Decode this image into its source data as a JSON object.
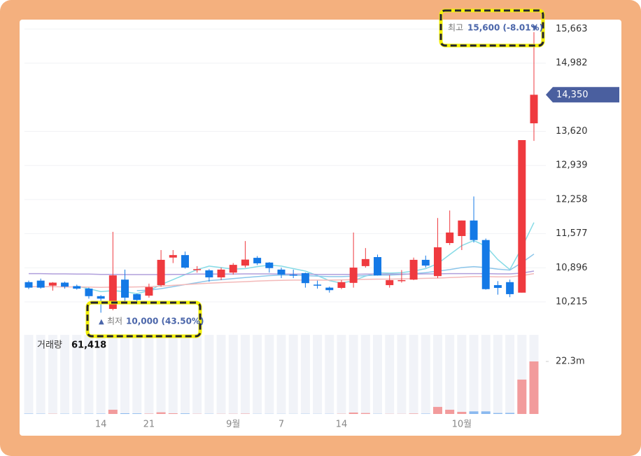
{
  "chart_data": {
    "type": "candlestick",
    "categories": [
      null,
      null,
      null,
      null,
      null,
      null,
      "14",
      null,
      null,
      null,
      "21",
      null,
      null,
      null,
      null,
      null,
      null,
      "9월",
      null,
      null,
      null,
      "7",
      null,
      null,
      null,
      null,
      "14",
      null,
      null,
      null,
      null,
      null,
      null,
      null,
      null,
      null,
      "10월",
      null,
      null,
      null,
      null,
      null,
      null
    ],
    "open": [
      10610,
      10640,
      10540,
      10600,
      10530,
      10480,
      10330,
      10075,
      10660,
      10370,
      10340,
      10550,
      11100,
      11150,
      10860,
      10845,
      10705,
      10800,
      10940,
      11095,
      11000,
      10860,
      10760,
      10790,
      10560,
      10500,
      10495,
      10595,
      10930,
      11110,
      10550,
      10640,
      10660,
      11055,
      10730,
      11390,
      11530,
      11840,
      11450,
      10550,
      10610,
      10400,
      13780
    ],
    "high": [
      10640,
      10680,
      10610,
      10620,
      10560,
      10500,
      10350,
      11614,
      10860,
      10380,
      10580,
      11250,
      11250,
      11220,
      10930,
      10870,
      10900,
      10990,
      11430,
      11130,
      11010,
      10900,
      10860,
      10800,
      10640,
      10520,
      10650,
      11600,
      11290,
      11160,
      10750,
      10850,
      11100,
      11140,
      11890,
      12040,
      11840,
      12320,
      11480,
      10630,
      10660,
      13445,
      15600
    ],
    "low": [
      10470,
      10480,
      10440,
      10480,
      10460,
      10280,
      10000,
      10047,
      10230,
      10215,
      10300,
      10520,
      10990,
      10880,
      10800,
      10620,
      10650,
      10760,
      10900,
      10950,
      10800,
      10690,
      10690,
      10500,
      10480,
      10400,
      10470,
      10500,
      10900,
      10740,
      10500,
      10600,
      10650,
      10900,
      10690,
      11350,
      11250,
      11400,
      10460,
      10360,
      10310,
      10400,
      13430
    ],
    "close": [
      10500,
      10500,
      10600,
      10520,
      10480,
      10330,
      10280,
      10745,
      10300,
      10255,
      10510,
      11055,
      11150,
      10900,
      10870,
      10705,
      10860,
      10955,
      11060,
      10985,
      10890,
      10760,
      10740,
      10590,
      10540,
      10450,
      10610,
      10900,
      11070,
      10745,
      10650,
      10650,
      11055,
      10940,
      11305,
      11600,
      11840,
      11450,
      10470,
      10495,
      10370,
      13445,
      14350
    ],
    "up_color": "#ef3a3f",
    "down_color": "#1479e6",
    "ylim": [
      9670,
      15850
    ],
    "yticks": [
      {
        "value": 10215,
        "label": "10,215"
      },
      {
        "value": 10896,
        "label": "10,896"
      },
      {
        "value": 11577,
        "label": "11,577"
      },
      {
        "value": 12258,
        "label": "12,258"
      },
      {
        "value": 12939,
        "label": "12,939"
      },
      {
        "value": 13620,
        "label": "13,620"
      },
      {
        "value": 14982,
        "label": "14,982"
      },
      {
        "value": 15663,
        "label": "15,663"
      }
    ],
    "grid": true,
    "moving_averages": [
      {
        "color": "#86dbe6",
        "values": [
          null,
          null,
          null,
          null,
          10530,
          10480,
          10420,
          10440,
          10420,
          10380,
          10440,
          10560,
          10660,
          10760,
          10860,
          10930,
          10900,
          10870,
          10880,
          10920,
          10950,
          10930,
          10880,
          10830,
          10740,
          10640,
          10590,
          10640,
          10730,
          10800,
          10790,
          10800,
          10830,
          10880,
          10980,
          11160,
          11340,
          11440,
          11330,
          11060,
          10860,
          11300,
          11800
        ]
      },
      {
        "color": "#8cc6ea",
        "values": [
          null,
          null,
          null,
          null,
          null,
          null,
          null,
          null,
          null,
          10440,
          10450,
          10480,
          10520,
          10560,
          10600,
          10640,
          10660,
          10680,
          10700,
          10720,
          10740,
          10750,
          10750,
          10740,
          10730,
          10720,
          10720,
          10730,
          10740,
          10750,
          10750,
          10760,
          10780,
          10800,
          10830,
          10860,
          10900,
          10920,
          10900,
          10870,
          10850,
          11000,
          11170
        ]
      },
      {
        "color": "#b09fdc",
        "values": [
          10780,
          10780,
          10775,
          10775,
          10770,
          10770,
          10765,
          10765,
          10760,
          10760,
          10760,
          10760,
          10765,
          10765,
          10770,
          10770,
          10770,
          10770,
          10775,
          10775,
          10775,
          10770,
          10770,
          10770,
          10765,
          10765,
          10765,
          10765,
          10770,
          10770,
          10770,
          10770,
          10770,
          10775,
          10775,
          10780,
          10780,
          10780,
          10780,
          10775,
          10775,
          10790,
          10830
        ]
      },
      {
        "color": "#f3b9b9",
        "values": [
          10520,
          10520,
          10520,
          10515,
          10515,
          10510,
          10505,
          10510,
          10510,
          10515,
          10520,
          10530,
          10545,
          10560,
          10575,
          10590,
          10600,
          10610,
          10620,
          10630,
          10640,
          10645,
          10650,
          10650,
          10650,
          10650,
          10655,
          10660,
          10665,
          10670,
          10670,
          10675,
          10680,
          10685,
          10690,
          10700,
          10710,
          10720,
          10720,
          10715,
          10715,
          10740,
          10780
        ]
      }
    ],
    "last_price": {
      "value": 14350,
      "label": "14,350"
    },
    "high_annotation": {
      "label": "최고",
      "text": "15,600 (-8.01%)"
    },
    "low_annotation": {
      "label": "최저",
      "text": "10,000 (43.50%)"
    },
    "volume": {
      "label": "거래량",
      "current": "61,418",
      "values": [
        150000,
        120000,
        100000,
        110000,
        90000,
        130000,
        150000,
        1800000,
        300000,
        250000,
        150000,
        700000,
        300000,
        250000,
        80000,
        90000,
        70000,
        80000,
        150000,
        70000,
        60000,
        60000,
        50000,
        90000,
        60000,
        80000,
        100000,
        600000,
        400000,
        90000,
        70000,
        60000,
        200000,
        150000,
        3000000,
        1800000,
        900000,
        1100000,
        1100000,
        400000,
        450000,
        14600000,
        22300000
      ],
      "up_color": "#f29b9c",
      "down_color": "#8ab9ef",
      "ylim": [
        0,
        33600000
      ],
      "yticks": [
        {
          "value": 22300000,
          "label": "22.3m"
        }
      ]
    }
  }
}
